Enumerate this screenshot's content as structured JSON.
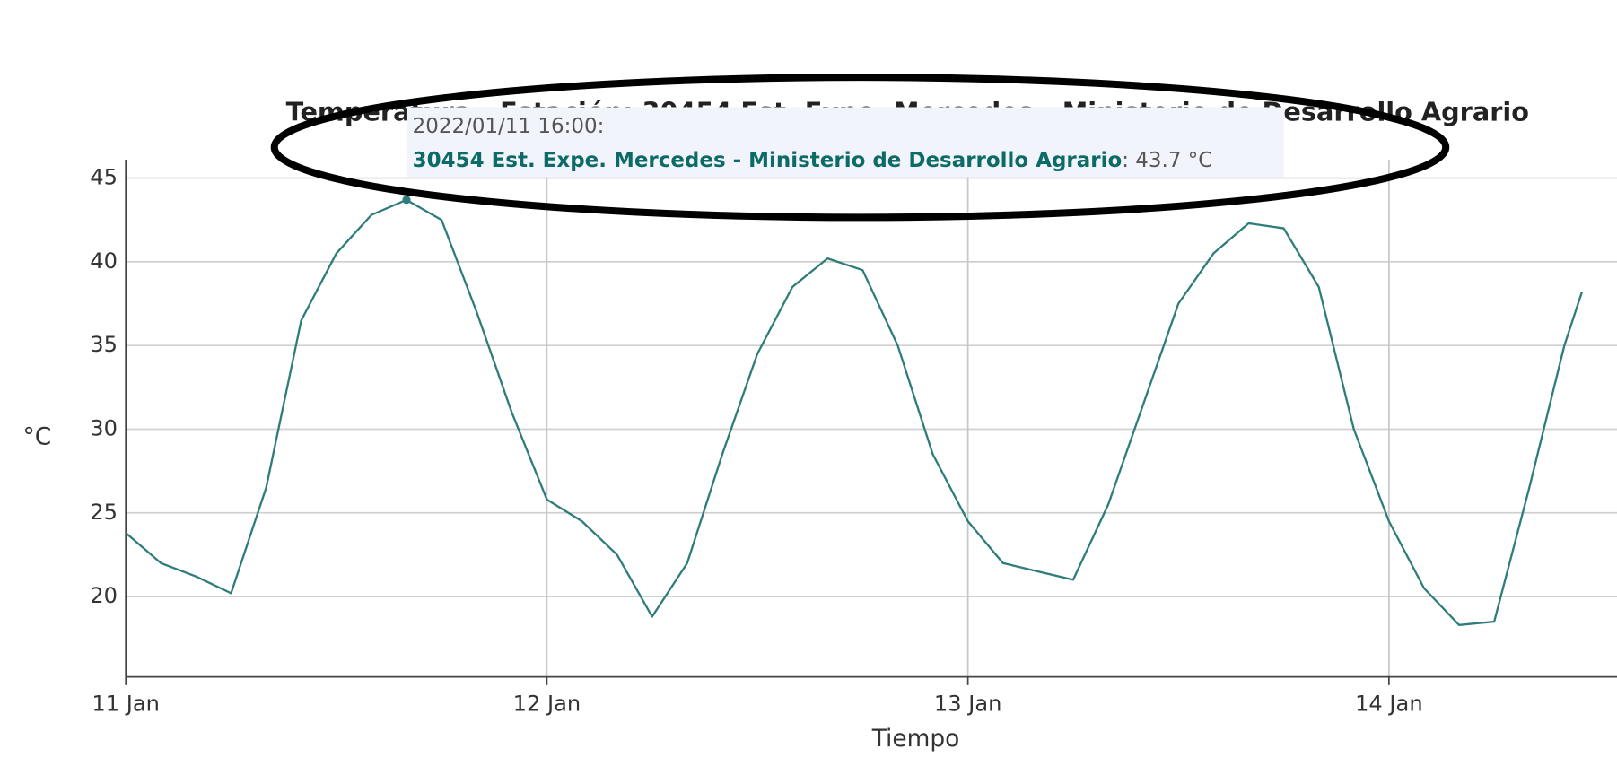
{
  "chart_data": {
    "type": "line",
    "title": "Temperatura - Estación: 30454 Est. Expe. Mercedes - Ministerio de Desarrollo Agrario",
    "x_label": "Tiempo",
    "y_label": "°C",
    "x": [
      "2022-01-11T00:00",
      "2022-01-11T02:00",
      "2022-01-11T04:00",
      "2022-01-11T06:00",
      "2022-01-11T08:00",
      "2022-01-11T10:00",
      "2022-01-11T12:00",
      "2022-01-11T14:00",
      "2022-01-11T16:00",
      "2022-01-11T18:00",
      "2022-01-11T20:00",
      "2022-01-11T22:00",
      "2022-01-12T00:00",
      "2022-01-12T02:00",
      "2022-01-12T04:00",
      "2022-01-12T06:00",
      "2022-01-12T08:00",
      "2022-01-12T10:00",
      "2022-01-12T12:00",
      "2022-01-12T14:00",
      "2022-01-12T16:00",
      "2022-01-12T18:00",
      "2022-01-12T20:00",
      "2022-01-12T22:00",
      "2022-01-13T00:00",
      "2022-01-13T02:00",
      "2022-01-13T04:00",
      "2022-01-13T06:00",
      "2022-01-13T08:00",
      "2022-01-13T10:00",
      "2022-01-13T12:00",
      "2022-01-13T14:00",
      "2022-01-13T16:00",
      "2022-01-13T18:00",
      "2022-01-13T20:00",
      "2022-01-13T22:00",
      "2022-01-14T00:00",
      "2022-01-14T02:00",
      "2022-01-14T04:00",
      "2022-01-14T06:00",
      "2022-01-14T08:00",
      "2022-01-14T10:00",
      "2022-01-14T11:00"
    ],
    "series": [
      {
        "name": "30454 Est. Expe. Mercedes - Ministerio de Desarrollo Agrario",
        "color": "#2e7d7a",
        "values": [
          23.8,
          22.0,
          21.2,
          20.2,
          26.5,
          36.5,
          40.5,
          42.8,
          43.7,
          42.5,
          37.0,
          31.0,
          25.8,
          24.5,
          22.5,
          18.8,
          22.0,
          28.5,
          34.5,
          38.5,
          40.2,
          39.5,
          35.0,
          28.5,
          24.5,
          22.0,
          21.5,
          21.0,
          25.5,
          31.5,
          37.5,
          40.5,
          42.3,
          42.0,
          38.5,
          30.0,
          24.5,
          20.5,
          18.3,
          18.5,
          26.5,
          35.0,
          38.2
        ]
      }
    ],
    "xlim": [
      "2022-01-11T00:00",
      "2022-01-14T13:00"
    ],
    "xticks": [
      {
        "value": "2022-01-11T00:00",
        "label": "11 Jan"
      },
      {
        "value": "2022-01-12T00:00",
        "label": "12 Jan"
      },
      {
        "value": "2022-01-13T00:00",
        "label": "13 Jan"
      },
      {
        "value": "2022-01-14T00:00",
        "label": "14 Jan"
      }
    ],
    "ylim": [
      15.2,
      46.1
    ],
    "yticks": [
      20,
      25,
      30,
      35,
      40,
      45
    ],
    "grid": true,
    "tooltip": {
      "time": "2022/01/11 16:00:",
      "series": 0,
      "value": 43.7,
      "value_label": ": 43.7 °C"
    }
  }
}
